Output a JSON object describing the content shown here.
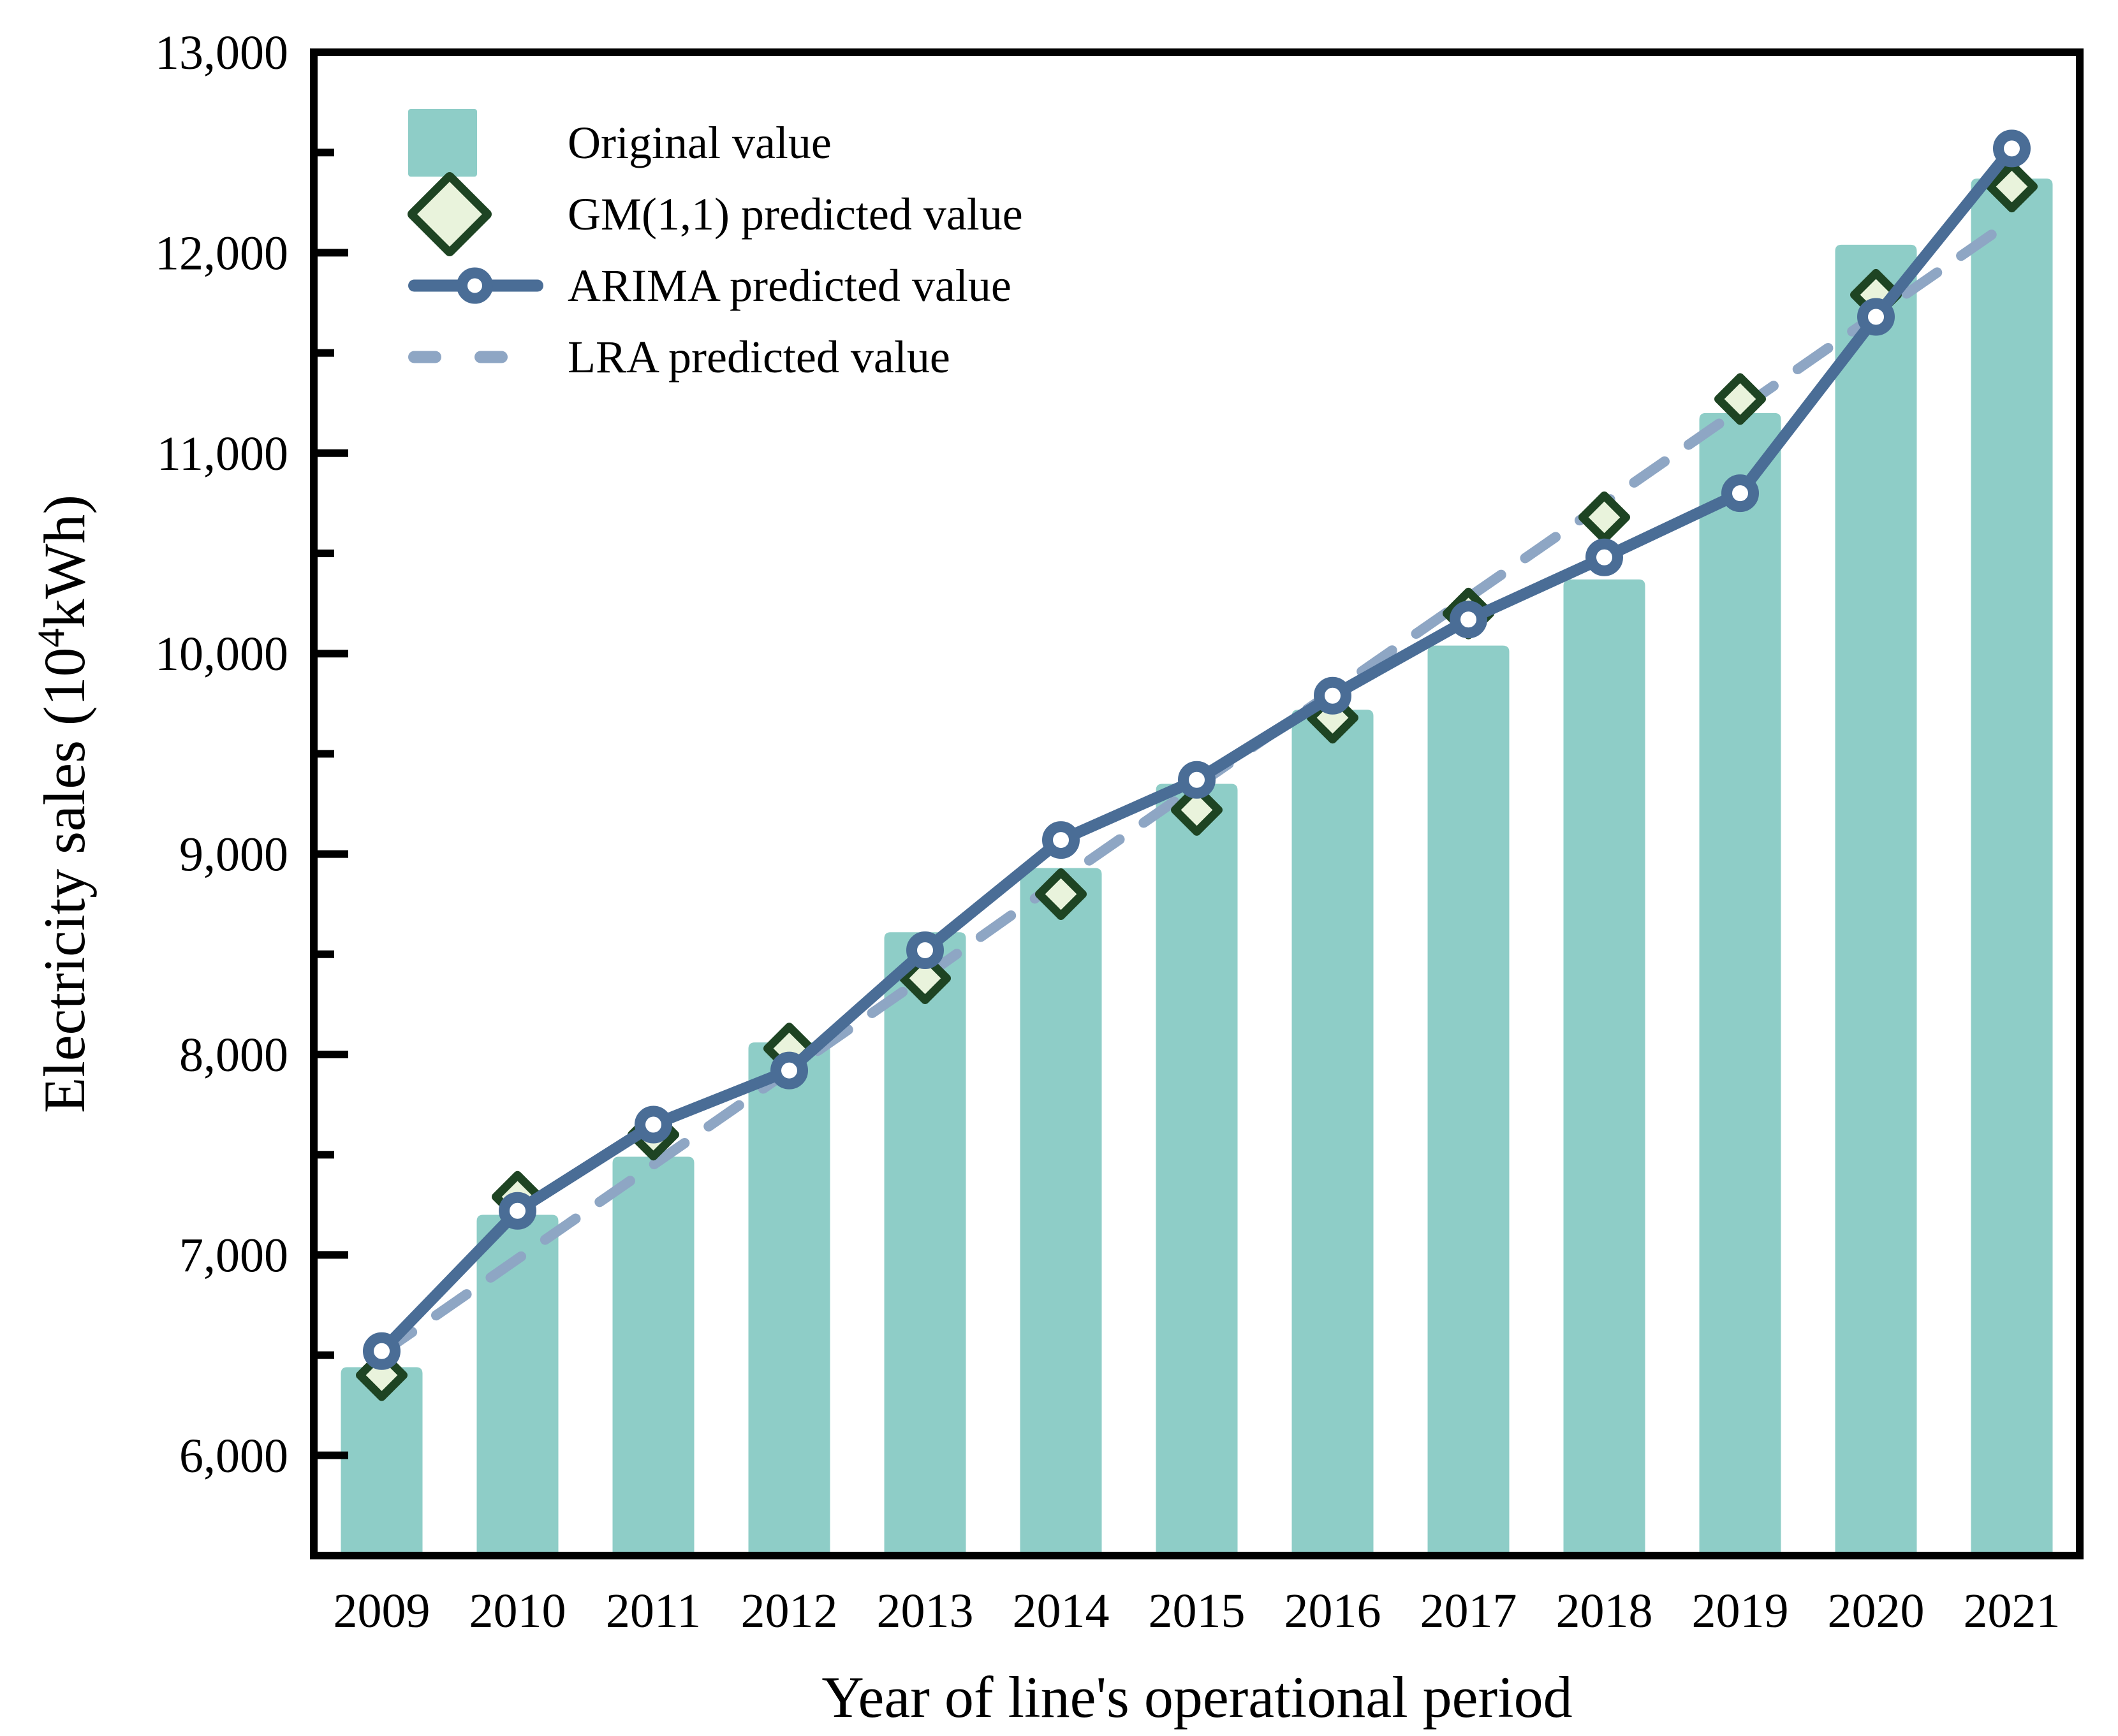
{
  "figure": {
    "background_color": "#ffffff",
    "axis_color": "#000000"
  },
  "axes": {
    "y": {
      "title_prefix": "Electricity sales (10",
      "title_sup": "4",
      "title_suffix": "kWh)"
    },
    "x": {
      "title": "Year of line's operational period"
    }
  },
  "chart_data": {
    "type": "bar+line combo",
    "title": "",
    "xlabel": "Year of line's operational period",
    "ylabel": "Electricity sales (10^4 kWh)",
    "categories": [
      "2009",
      "2010",
      "2011",
      "2012",
      "2013",
      "2014",
      "2015",
      "2016",
      "2017",
      "2018",
      "2019",
      "2020",
      "2021"
    ],
    "ylim": [
      5500,
      13000
    ],
    "y_major_ticks": [
      6000,
      7000,
      8000,
      9000,
      10000,
      11000,
      12000,
      13000
    ],
    "y_major_tick_labels": [
      "6,000",
      "7,000",
      "8,000",
      "9,000",
      "10,000",
      "11,000",
      "12,000",
      "13,000"
    ],
    "y_minor_ticks": [
      6500,
      7500,
      8500,
      9500,
      10500,
      11500,
      12500
    ],
    "grid": false,
    "legend_position": "top-left-inside",
    "series": [
      {
        "name": "Original value",
        "type": "bar",
        "color": "#8ecdc7",
        "values": [
          6440,
          7200,
          7490,
          8060,
          8610,
          8930,
          9350,
          9720,
          10040,
          10370,
          11200,
          12040,
          12370
        ]
      },
      {
        "name": "GM(1,1) predicted value",
        "type": "scatter",
        "marker": "diamond",
        "fill": "#e9f3dc",
        "stroke": "#1e4423",
        "values": [
          6400,
          7290,
          7600,
          8030,
          8380,
          8800,
          9220,
          9680,
          10200,
          10680,
          11270,
          11790,
          12330
        ]
      },
      {
        "name": "ARIMA predicted value",
        "type": "line",
        "marker": "circle",
        "marker_fill": "#ffffff",
        "color": "#4a6d96",
        "values": [
          6520,
          7220,
          7650,
          7920,
          8520,
          9070,
          9370,
          9790,
          10170,
          10480,
          10800,
          11680,
          12520
        ]
      },
      {
        "name": "LRA predicted value",
        "type": "line",
        "style": "dashed",
        "color": "#8ea6c4",
        "values": [
          6510,
          6980,
          7450,
          7920,
          8390,
          8870,
          9340,
          9810,
          10280,
          10750,
          11220,
          11690,
          12160
        ]
      }
    ]
  }
}
